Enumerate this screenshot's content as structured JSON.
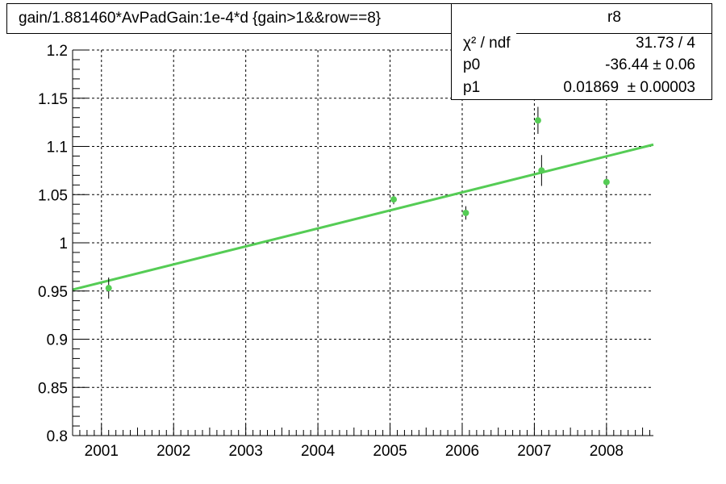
{
  "title": "gain/1.881460*AvPadGain:1e-4*d  {gain>1&&row==8}",
  "stats": {
    "name": "r8",
    "rows": [
      {
        "label": "χ² / ndf",
        "value": "31.73 / 4"
      },
      {
        "label": "p0",
        "value": "-36.44 ± 0.06"
      },
      {
        "label": "p1",
        "value": "0.01869  ± 0.00003"
      }
    ]
  },
  "colors": {
    "points": "#55cc55",
    "fit": "#55cc55",
    "axes": "#000000",
    "grid": "#000000"
  },
  "chart_data": {
    "type": "scatter",
    "title": "gain/1.881460*AvPadGain:1e-4*d  {gain>1&&row==8}",
    "xlabel": "",
    "ylabel": "",
    "xlim": [
      2000.6,
      2008.65
    ],
    "ylim": [
      0.8,
      1.2
    ],
    "x_ticks": [
      "2001",
      "2002",
      "2003",
      "2004",
      "2005",
      "2006",
      "2007",
      "2008"
    ],
    "y_ticks": [
      "0.8",
      "0.85",
      "0.9",
      "0.95",
      "1",
      "1.05",
      "1.1",
      "1.15",
      "1.2"
    ],
    "grid": true,
    "points": [
      {
        "x": 2001.1,
        "y": 0.953,
        "yerr": 0.011
      },
      {
        "x": 2005.05,
        "y": 1.045,
        "yerr": 0.005
      },
      {
        "x": 2006.05,
        "y": 1.031,
        "yerr": 0.007
      },
      {
        "x": 2007.05,
        "y": 1.127,
        "yerr": 0.014
      },
      {
        "x": 2007.1,
        "y": 1.075,
        "yerr": 0.016
      },
      {
        "x": 2008.0,
        "y": 1.063,
        "yerr": 0.004
      }
    ],
    "fit": {
      "function": "p0 + p1*x",
      "p0": -36.4398,
      "p1": 0.01869
    }
  }
}
